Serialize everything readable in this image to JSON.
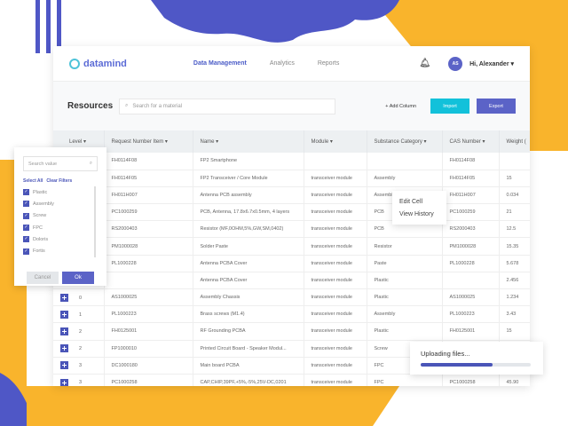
{
  "colors": {
    "accent": "#4a55b8",
    "import": "#12c1da",
    "export": "#5b63c7",
    "yellow": "#f9b42c",
    "purple": "#4f57c6"
  },
  "header": {
    "logo": "datamind",
    "nav": [
      {
        "label": "Data Management",
        "active": true
      },
      {
        "label": "Analytics"
      },
      {
        "label": "Reports"
      }
    ],
    "avatar": "AS",
    "user": "Hi, Alexander ▾"
  },
  "toolbar": {
    "title": "Resources",
    "search_placeholder": "Search for a material",
    "add_column": "+ Add Column",
    "import": "Import",
    "export": "Export"
  },
  "table": {
    "columns": [
      "Level ▾",
      "Request Number Item ▾",
      "Name ▾",
      "Module ▾",
      "Substance Category ▾",
      "CAS Number ▾",
      "Weight ("
    ],
    "rows": [
      [
        "",
        "FH0114F08",
        "FP2 Smartphone",
        "",
        "",
        "FH0114F08",
        ""
      ],
      [
        "",
        "FH0114F05",
        "FP2 Transceiver / Core Module",
        "transceiver module",
        "Assembly",
        "FH0114F05",
        "15"
      ],
      [
        "",
        "FH011H007",
        "Antenna PCB assembly",
        "transceiver module",
        "Assembly",
        "FH011H007",
        "0.034"
      ],
      [
        "",
        "PC1000259",
        "PCB, Antenna, 17.8x6.7x0.5mm, 4 layers",
        "transceiver module",
        "PCB",
        "PC1000259",
        "21"
      ],
      [
        "",
        "RS2000403",
        "Resistor (MF,0OHM,5%,GW,SM,0402)",
        "transceiver module",
        "PCB",
        "RS2000403",
        "12.5"
      ],
      [
        "",
        "PM1000028",
        "Solder Paste",
        "transceiver module",
        "Resistor",
        "PM1000028",
        "15.35"
      ],
      [
        "",
        "PL1000228",
        "Antenna PCBA Cover",
        "transceiver module",
        "Paste",
        "PL1000228",
        "5.678"
      ],
      [
        "",
        "",
        "Antenna PCBA Cover",
        "transceiver module",
        "Plastic",
        "",
        "2.456"
      ],
      [
        "0",
        "AS1000025",
        "Assembly Chassis",
        "transceiver module",
        "Plastic",
        "AS1000025",
        "1.234"
      ],
      [
        "1",
        "PL1000223",
        "Brass screws (M1.4)",
        "transceiver module",
        "Assembly",
        "PL1000223",
        "3.43"
      ],
      [
        "2",
        "FH0125001",
        "RF Grounding PCBA",
        "transceiver module",
        "Plastic",
        "FH0125001",
        "15"
      ],
      [
        "2",
        "FP1000010",
        "Printed Circuit Board - Speaker Modul...",
        "transceiver module",
        "Screw",
        "",
        ""
      ],
      [
        "3",
        "DC1000180",
        "Main board PCBA",
        "transceiver module",
        "FPC",
        "",
        ""
      ],
      [
        "3",
        "PC1000258",
        "CAP,CHIP,39PF,+5%,-5%,25V-DC,0201",
        "transceiver module",
        "FPC",
        "PC1000258",
        "45.90"
      ]
    ]
  },
  "filter": {
    "placeholder": "Search value",
    "select_all": "Select All",
    "clear": "Clear Filters",
    "items": [
      "Plastic",
      "Assembly",
      "Screw",
      "FPC",
      "Doloris",
      "Fortis"
    ],
    "cancel": "Cancel",
    "ok": "Ok"
  },
  "context_menu": {
    "items": [
      "Edit Cell",
      "View History"
    ]
  },
  "upload": {
    "label": "Uploading files...",
    "progress_percent": 65
  }
}
